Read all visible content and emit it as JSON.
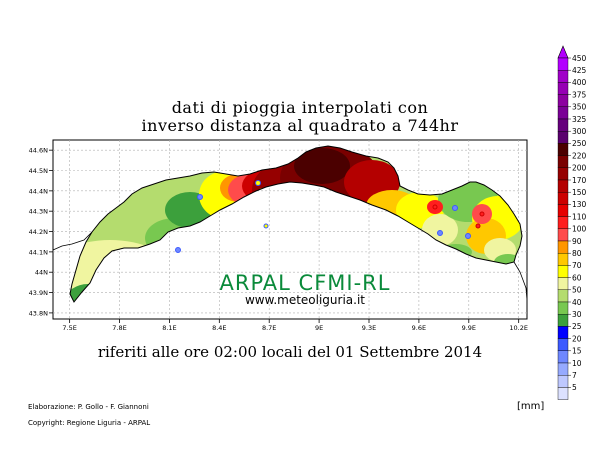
{
  "title": {
    "line1": "dati di pioggia interpolati con",
    "line2": "inverso distanza al quadrato a 744hr"
  },
  "subtitle": "riferiti alle ore 02:00 locali del 01 Settembre 2014",
  "watermark": {
    "org": "ARPAL CFMI-RL",
    "site": "www.meteoliguria.it"
  },
  "credits": {
    "line1": "Elaborazione: P. Gollo - F. Giannoni",
    "line2": "Copyright: Regione Liguria - ARPAL"
  },
  "legend": {
    "unit": "[mm]",
    "levels": [
      {
        "label": "450",
        "color": "#b300ff"
      },
      {
        "label": "425",
        "color": "#a000c8"
      },
      {
        "label": "400",
        "color": "#9600b4"
      },
      {
        "label": "375",
        "color": "#8c00a0"
      },
      {
        "label": "350",
        "color": "#7a0096"
      },
      {
        "label": "325",
        "color": "#66007d"
      },
      {
        "label": "300",
        "color": "#5a006e"
      },
      {
        "label": "250",
        "color": "#4b0000"
      },
      {
        "label": "220",
        "color": "#7a0000"
      },
      {
        "label": "200",
        "color": "#960000"
      },
      {
        "label": "170",
        "color": "#b40000"
      },
      {
        "label": "150",
        "color": "#cd0000"
      },
      {
        "label": "130",
        "color": "#e60000"
      },
      {
        "label": "110",
        "color": "#ff1e1e"
      },
      {
        "label": "100",
        "color": "#ff4b4b"
      },
      {
        "label": "90",
        "color": "#ff9600"
      },
      {
        "label": "80",
        "color": "#ffc800"
      },
      {
        "label": "70",
        "color": "#ffff00"
      },
      {
        "label": "60",
        "color": "#f0f5a0"
      },
      {
        "label": "50",
        "color": "#b4dc6e"
      },
      {
        "label": "40",
        "color": "#78c850"
      },
      {
        "label": "30",
        "color": "#3ca03c"
      },
      {
        "label": "25",
        "color": "#0000ff"
      },
      {
        "label": "20",
        "color": "#3c5aff"
      },
      {
        "label": "15",
        "color": "#6e87ff"
      },
      {
        "label": "10",
        "color": "#96aaff"
      },
      {
        "label": "7",
        "color": "#bec8ff"
      },
      {
        "label": "5",
        "color": "#dce1ff"
      }
    ]
  },
  "map": {
    "lat_ticks": [
      "44.6N",
      "44.5N",
      "44.4N",
      "44.3N",
      "44.2N",
      "44.1N",
      "44N",
      "43.9N",
      "43.8N"
    ],
    "lon_ticks": [
      "7.5E",
      "7.8E",
      "8.1E",
      "8.4E",
      "8.7E",
      "9E",
      "9.3E",
      "9.6E",
      "9.9E",
      "10.2E"
    ],
    "lat_range": [
      43.8,
      44.6
    ],
    "lon_range": [
      7.5,
      10.2
    ]
  }
}
